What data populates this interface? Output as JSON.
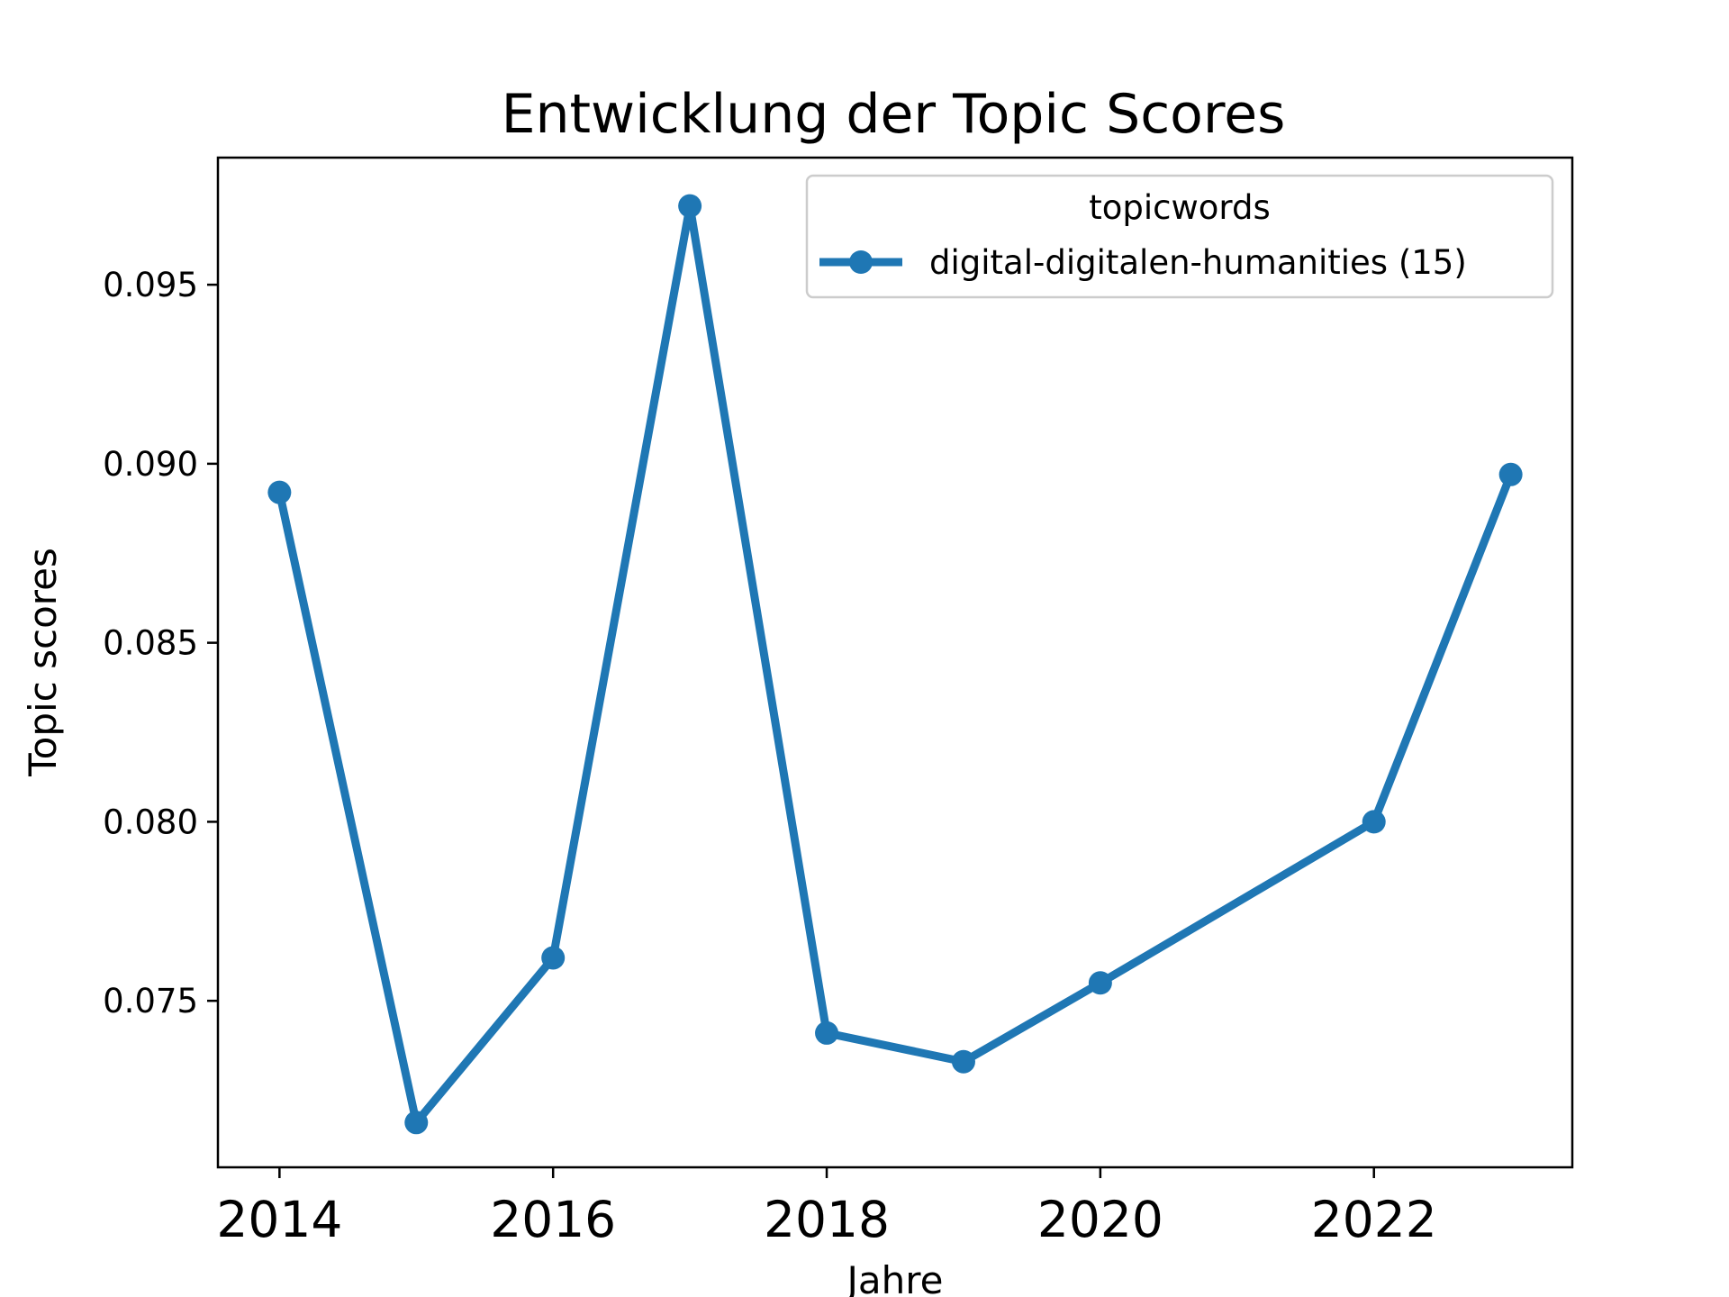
{
  "chart_data": {
    "type": "line",
    "title": "Entwicklung der Topic Scores",
    "xlabel": "Jahre",
    "ylabel": "Topic scores",
    "xlim": [
      2013.55,
      2023.45
    ],
    "ylim": [
      0.07035,
      0.09855
    ],
    "xticks": [
      2014,
      2016,
      2018,
      2020,
      2022
    ],
    "xtick_labels": [
      "2014",
      "2016",
      "2018",
      "2020",
      "2022"
    ],
    "yticks": [
      0.075,
      0.08,
      0.085,
      0.09,
      0.095
    ],
    "ytick_labels": [
      "0.075",
      "0.080",
      "0.085",
      "0.090",
      "0.095"
    ],
    "grid": false,
    "legend": {
      "title": "topicwords",
      "placement": "upper right"
    },
    "series": [
      {
        "name": "digital-digitalen-humanities (15)",
        "color": "#1f77b4",
        "marker": "circle",
        "x": [
          2014,
          2015,
          2016,
          2017,
          2018,
          2019,
          2020,
          2022,
          2023
        ],
        "y": [
          0.0892,
          0.0716,
          0.0762,
          0.0972,
          0.0741,
          0.0733,
          0.0755,
          0.08,
          0.0897
        ]
      }
    ]
  }
}
